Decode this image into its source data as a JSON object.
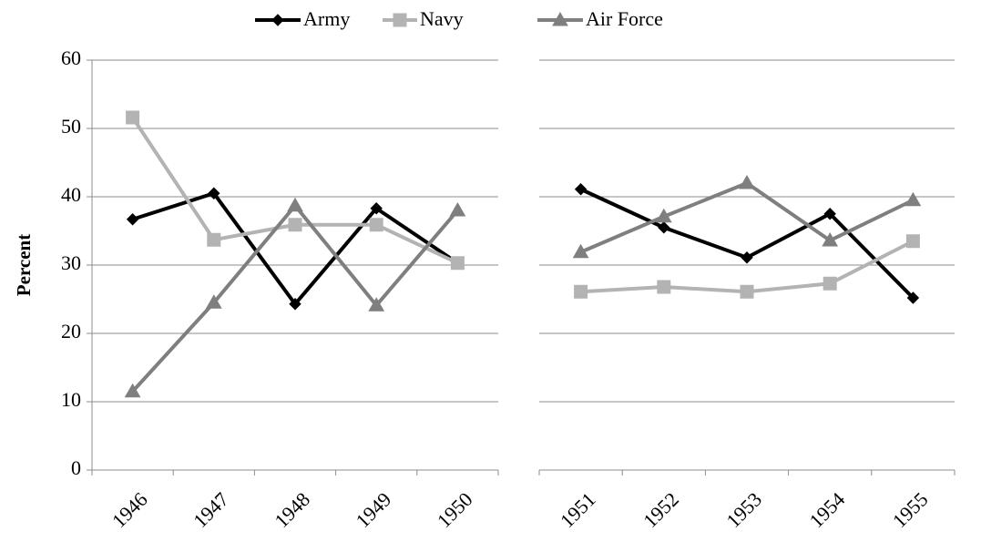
{
  "chart_data": [
    {
      "type": "line",
      "ylabel": "Percent",
      "categories": [
        "1946",
        "1947",
        "1948",
        "1949",
        "1950"
      ],
      "ylim": [
        0,
        60
      ],
      "yticks": [
        0,
        10,
        20,
        30,
        40,
        50,
        60
      ],
      "grid": true,
      "legend": "top",
      "series": [
        {
          "name": "Army",
          "color": "#000000",
          "marker": "diamond",
          "values": [
            36.7,
            40.5,
            24.3,
            38.3,
            30.3
          ]
        },
        {
          "name": "Navy",
          "color": "#b3b3b3",
          "marker": "square",
          "values": [
            51.6,
            33.7,
            35.9,
            35.9,
            30.3
          ]
        },
        {
          "name": "Air Force",
          "color": "#7f7f7f",
          "marker": "triangle",
          "values": [
            11.5,
            24.5,
            38.7,
            24.1,
            38.0
          ]
        }
      ]
    },
    {
      "type": "line",
      "categories": [
        "1951",
        "1952",
        "1953",
        "1954",
        "1955"
      ],
      "ylim": [
        0,
        60
      ],
      "yticks": [
        0,
        10,
        20,
        30,
        40,
        50,
        60
      ],
      "grid": true,
      "series": [
        {
          "color": "#000000",
          "marker": "diamond",
          "values": [
            41.1,
            35.5,
            31.1,
            37.5,
            25.2
          ]
        },
        {
          "color": "#b3b3b3",
          "marker": "square",
          "values": [
            26.1,
            26.8,
            26.1,
            27.3,
            33.5
          ]
        },
        {
          "color": "#7f7f7f",
          "marker": "triangle",
          "values": [
            31.9,
            37.1,
            42.0,
            33.6,
            39.5
          ]
        }
      ]
    }
  ]
}
